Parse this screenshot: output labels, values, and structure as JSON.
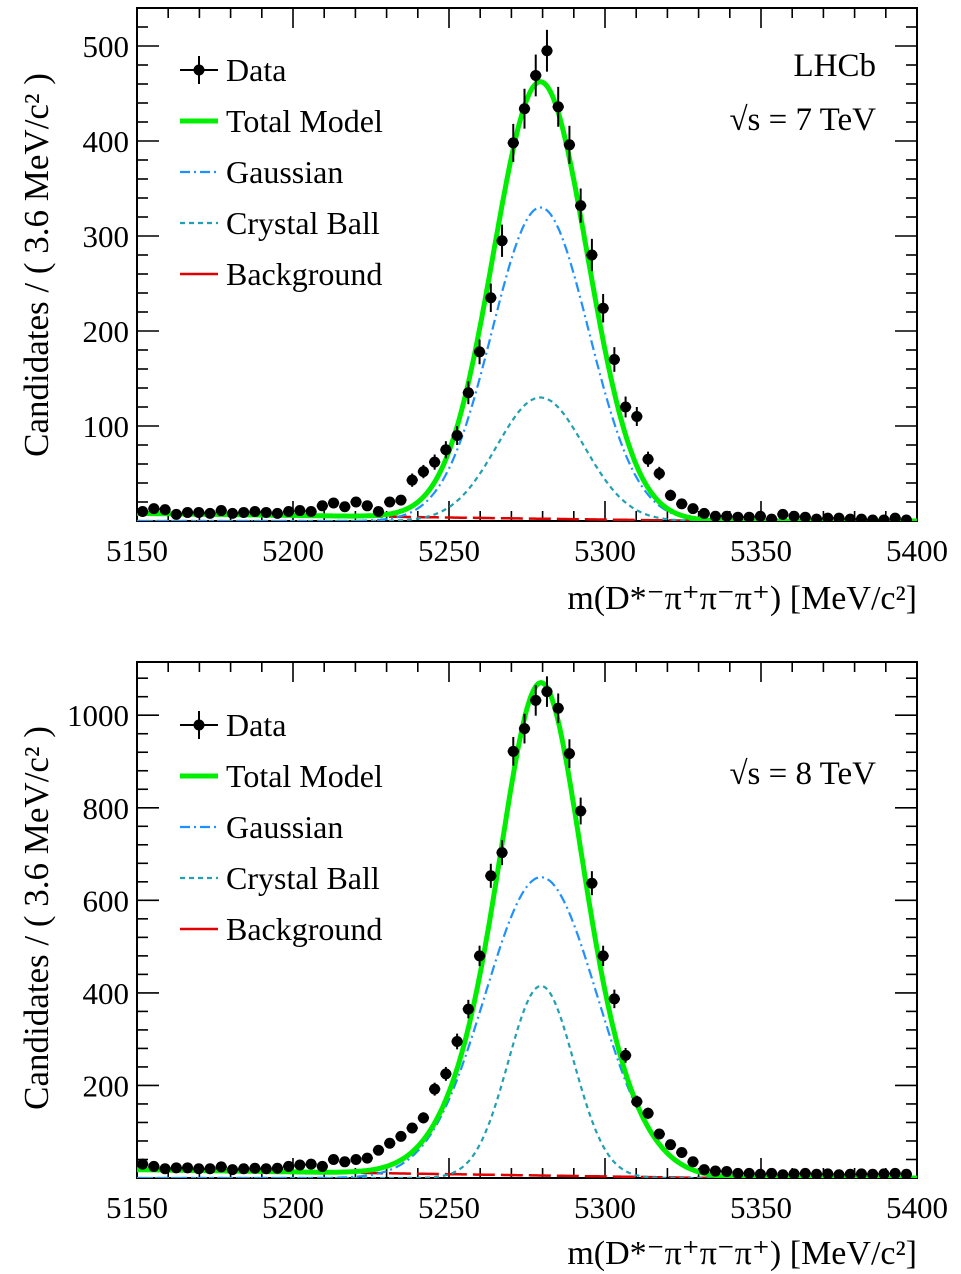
{
  "chart_data": [
    {
      "type": "scatter",
      "panel_id": "top",
      "ylabel": "Candidates / ( 3.6 MeV/c² )",
      "xlabel": "m(D*⁻π⁺π⁻π⁺) [MeV/c²]",
      "xlim": [
        5150,
        5400
      ],
      "ylim": [
        0,
        540
      ],
      "xticks": [
        "5150",
        "5200",
        "5250",
        "5300",
        "5350",
        "5400"
      ],
      "yticks": [
        "100",
        "200",
        "300",
        "400",
        "500"
      ],
      "experiment": "LHCb",
      "energy": "√s = 7 TeV",
      "legend": {
        "position": "top-left",
        "entries": [
          "Data",
          "Total Model",
          "Gaussian",
          "Crystal Ball",
          "Background"
        ]
      },
      "colors": {
        "data": "#000000",
        "total": "#00ee00",
        "gaussian": "#1e90ff",
        "crystal_ball": "#20a0b0",
        "background": "#e00000"
      },
      "model": {
        "mean": 5279.3,
        "gauss_amp": 330,
        "gauss_sigma": 15.5,
        "cb_amp": 130,
        "cb_sigma": 14.0,
        "bkg_start": 8,
        "bkg_end": 0,
        "bkg_x_end": 5335
      },
      "series": [
        {
          "name": "Data",
          "x": [
            5151.8,
            5155.4,
            5159.0,
            5162.6,
            5166.2,
            5169.8,
            5173.4,
            5177.0,
            5180.6,
            5184.2,
            5187.8,
            5191.4,
            5195.0,
            5198.6,
            5202.2,
            5205.8,
            5209.4,
            5213.0,
            5216.6,
            5220.2,
            5223.8,
            5227.4,
            5231.0,
            5234.6,
            5238.2,
            5241.8,
            5245.4,
            5249.0,
            5252.6,
            5256.2,
            5259.8,
            5263.4,
            5267.0,
            5270.6,
            5274.2,
            5277.8,
            5281.4,
            5285.0,
            5288.6,
            5292.2,
            5295.8,
            5299.4,
            5303.0,
            5306.6,
            5310.2,
            5313.8,
            5317.4,
            5321.0,
            5324.6,
            5328.2,
            5331.8,
            5335.4,
            5339.0,
            5342.6,
            5346.2,
            5349.8,
            5353.4,
            5357.0,
            5360.6,
            5364.2,
            5367.8,
            5371.4,
            5375.0,
            5378.6,
            5382.2,
            5385.8,
            5389.4,
            5393.0,
            5396.6
          ],
          "y": [
            10,
            13,
            12,
            7,
            9,
            9,
            8,
            11,
            8,
            9,
            10,
            9,
            8,
            10,
            11,
            10,
            16,
            19,
            15,
            20,
            16,
            10,
            20,
            22,
            43,
            52,
            62,
            75,
            90,
            135,
            178,
            235,
            295,
            398,
            434,
            469,
            495,
            436,
            396,
            332,
            280,
            224,
            170,
            120,
            110,
            65,
            50,
            27,
            18,
            13,
            8,
            5,
            5,
            4,
            4,
            5,
            2,
            7,
            5,
            4,
            2,
            3,
            3,
            2,
            2,
            1,
            1,
            3,
            1
          ],
          "err": [
            4,
            4,
            4,
            4,
            4,
            4,
            4,
            4,
            4,
            4,
            4,
            4,
            4,
            4,
            4,
            4,
            5,
            5,
            5,
            5,
            5,
            4,
            5,
            5,
            7,
            7,
            8,
            9,
            10,
            12,
            13,
            15,
            17,
            20,
            21,
            22,
            22,
            21,
            20,
            18,
            17,
            15,
            13,
            11,
            10,
            8,
            7,
            6,
            5,
            4,
            4,
            3,
            3,
            3,
            3,
            3,
            2,
            3,
            3,
            3,
            2,
            2,
            2,
            2,
            2,
            2,
            2,
            2,
            2
          ]
        }
      ]
    },
    {
      "type": "scatter",
      "panel_id": "bottom",
      "ylabel": "Candidates / ( 3.6 MeV/c² )",
      "xlabel": "m(D*⁻π⁺π⁻π⁺) [MeV/c²]",
      "xlim": [
        5150,
        5400
      ],
      "ylim": [
        0,
        1115
      ],
      "xticks": [
        "5150",
        "5200",
        "5250",
        "5300",
        "5350",
        "5400"
      ],
      "yticks": [
        "200",
        "400",
        "600",
        "800",
        "1000"
      ],
      "energy": "√s = 8 TeV",
      "legend": {
        "position": "top-left",
        "entries": [
          "Data",
          "Total Model",
          "Gaussian",
          "Crystal Ball",
          "Background"
        ]
      },
      "colors": {
        "data": "#000000",
        "total": "#00ee00",
        "gaussian": "#1e90ff",
        "crystal_ball": "#20a0b0",
        "background": "#e00000"
      },
      "model": {
        "mean": 5279.5,
        "gauss_amp": 650,
        "gauss_sigma": 18.0,
        "cb_amp": 415,
        "cb_sigma": 10.5,
        "bkg_start": 18,
        "bkg_end": 0,
        "bkg_x_end": 5335
      },
      "series": [
        {
          "name": "Data",
          "x": [
            5151.8,
            5155.4,
            5159.0,
            5162.6,
            5166.2,
            5169.8,
            5173.4,
            5177.0,
            5180.6,
            5184.2,
            5187.8,
            5191.4,
            5195.0,
            5198.6,
            5202.2,
            5205.8,
            5209.4,
            5213.0,
            5216.6,
            5220.2,
            5223.8,
            5227.4,
            5231.0,
            5234.6,
            5238.2,
            5241.8,
            5245.4,
            5249.0,
            5252.6,
            5256.2,
            5259.8,
            5263.4,
            5267.0,
            5270.6,
            5274.2,
            5277.8,
            5281.4,
            5285.0,
            5288.6,
            5292.2,
            5295.8,
            5299.4,
            5303.0,
            5306.6,
            5310.2,
            5313.8,
            5317.4,
            5321.0,
            5324.6,
            5328.2,
            5331.8,
            5335.4,
            5339.0,
            5342.6,
            5346.2,
            5349.8,
            5353.4,
            5357.0,
            5360.6,
            5364.2,
            5367.8,
            5371.4,
            5375.0,
            5378.6,
            5382.2,
            5385.8,
            5389.4,
            5393.0,
            5396.6
          ],
          "y": [
            30,
            25,
            20,
            22,
            22,
            20,
            20,
            24,
            18,
            20,
            21,
            20,
            21,
            25,
            28,
            30,
            25,
            40,
            35,
            40,
            43,
            60,
            75,
            90,
            108,
            130,
            192,
            225,
            295,
            365,
            480,
            653,
            703,
            922,
            971,
            1032,
            1051,
            1015,
            917,
            793,
            637,
            480,
            387,
            265,
            165,
            140,
            95,
            72,
            55,
            35,
            18,
            15,
            14,
            10,
            10,
            8,
            10,
            7,
            9,
            10,
            8,
            9,
            7,
            8,
            9,
            8,
            9,
            10,
            8
          ],
          "err": [
            6,
            6,
            5,
            5,
            5,
            5,
            5,
            5,
            5,
            5,
            5,
            5,
            5,
            5,
            6,
            6,
            5,
            7,
            6,
            7,
            7,
            8,
            9,
            10,
            11,
            12,
            14,
            15,
            17,
            20,
            22,
            26,
            27,
            31,
            32,
            33,
            33,
            32,
            31,
            29,
            26,
            22,
            20,
            16,
            13,
            12,
            10,
            9,
            8,
            6,
            5,
            4,
            4,
            4,
            4,
            3,
            4,
            3,
            3,
            4,
            3,
            3,
            3,
            3,
            3,
            3,
            3,
            4,
            3
          ]
        }
      ]
    }
  ]
}
